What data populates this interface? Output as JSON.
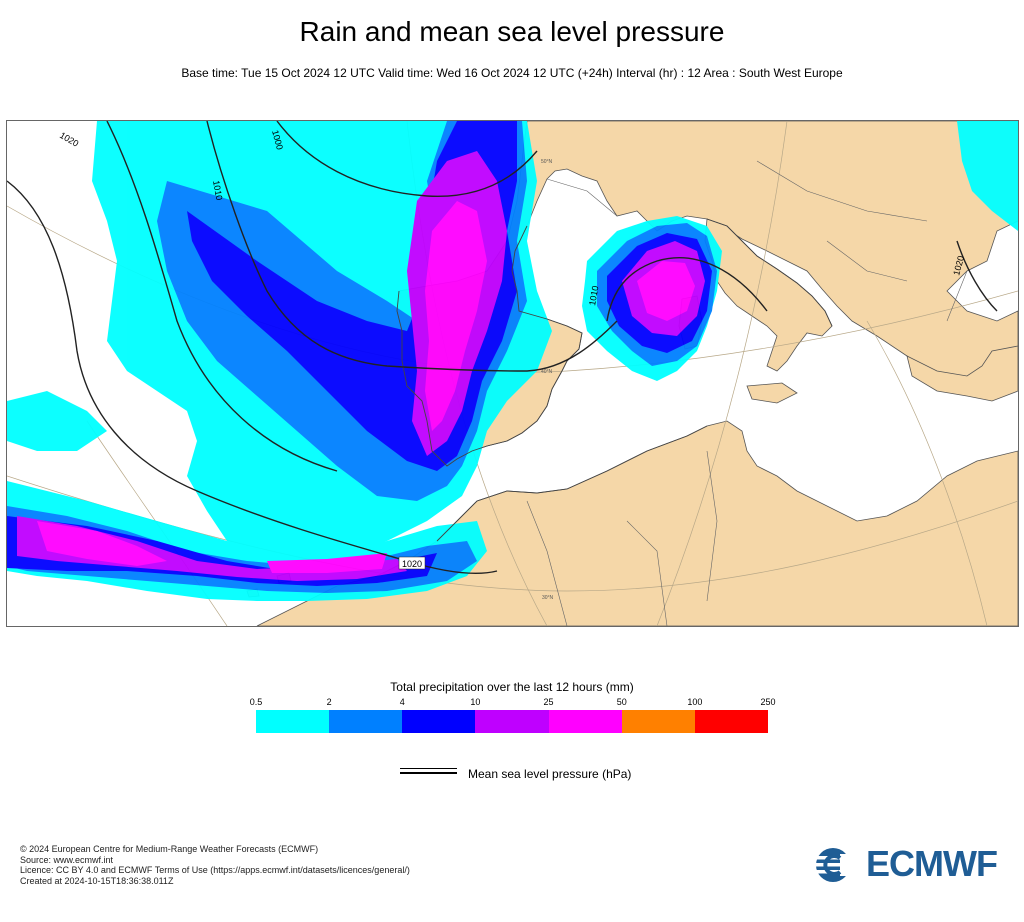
{
  "title": "Rain and mean sea level pressure",
  "subtitle": "Base time: Tue 15 Oct 2024 12 UTC Valid time: Wed 16 Oct 2024 12 UTC (+24h) Interval (hr) : 12 Area : South West Europe",
  "map": {
    "isobar_labels": [
      "1020",
      "1010",
      "1000",
      "1010",
      "1020",
      "1020"
    ],
    "graticule_labels": [
      "40°N",
      "30°N",
      "50°N"
    ],
    "colors": {
      "land": "#f5d7a8",
      "sea": "#ffffff",
      "coast": "#555555",
      "isobar": "#222222"
    }
  },
  "legend": {
    "title": "Total precipitation over the last 12 hours (mm)",
    "ticks": [
      "0.5",
      "2",
      "4",
      "10",
      "25",
      "50",
      "100",
      "250"
    ],
    "colors": [
      "#00ffff",
      "#0080ff",
      "#0000ff",
      "#bf00ff",
      "#ff00ff",
      "#ff8000",
      "#ff0000"
    ]
  },
  "pressure_legend": {
    "label": "Mean sea level pressure (hPa)"
  },
  "footer": {
    "copyright": "© 2024 European Centre for Medium-Range Weather Forecasts (ECMWF)",
    "source": "Source: www.ecmwf.int",
    "licence": "Licence: CC BY 4.0 and ECMWF Terms of Use (https://apps.ecmwf.int/datasets/licences/general/)",
    "created": "Created at 2024-10-15T18:36:38.011Z"
  },
  "logo": {
    "text": "ECMWF",
    "color": "#1f5d95",
    "icon": "ecmwf-logo-icon"
  }
}
